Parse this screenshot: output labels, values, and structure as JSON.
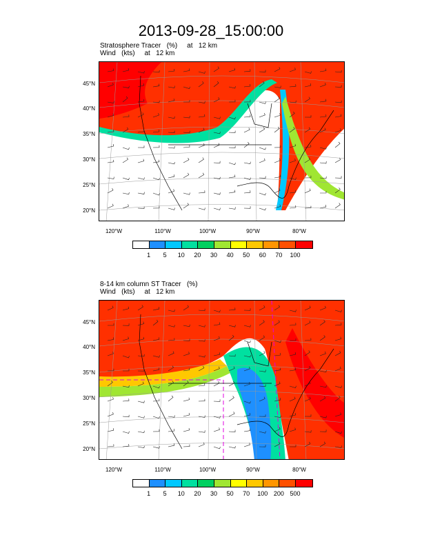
{
  "title": "2013-09-28_15:00:00",
  "panel1": {
    "label_line1": "Stratosphere Tracer   (%)     at   12 km",
    "label_line2": "Wind   (kts)     at   12 km",
    "colorbar_levels": [
      "1",
      "5",
      "10",
      "20",
      "30",
      "40",
      "50",
      "60",
      "70",
      "100"
    ]
  },
  "panel2": {
    "label_line1": "8-14 km column ST Tracer   (%)",
    "label_line2": "Wind   (kts)     at   12 km",
    "colorbar_levels": [
      "1",
      "5",
      "10",
      "20",
      "30",
      "50",
      "70",
      "100",
      "200",
      "500"
    ]
  },
  "lat_labels": [
    "45°N",
    "40°N",
    "35°N",
    "30°N",
    "25°N",
    "20°N"
  ],
  "lon_labels": [
    "120°W",
    "110°W",
    "100°W",
    "90°W",
    "80°W"
  ],
  "colorbar_colors": [
    "#ffffff",
    "#1e90ff",
    "#00c8ff",
    "#00e0a0",
    "#00d060",
    "#a0e632",
    "#ffff00",
    "#ffc800",
    "#ff9600",
    "#ff5000",
    "#ff0000"
  ]
}
